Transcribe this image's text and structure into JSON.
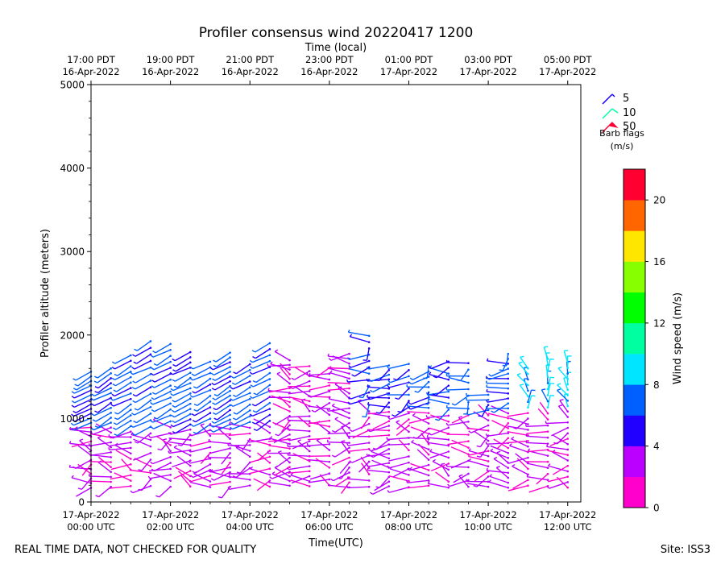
{
  "chart_data": {
    "type": "wind-barb-profile",
    "title": "Profiler consensus wind 20220417 1200",
    "top_axis_label": "Time (local)",
    "xlabel": "Time(UTC)",
    "ylabel": "Profiler altitude (meters)",
    "xlim_hours_utc": [
      0,
      12.33
    ],
    "ylim": [
      0,
      5000
    ],
    "y_ticks": [
      "0",
      "1000",
      "2000",
      "3000",
      "4000",
      "5000"
    ],
    "bottom_ticks": [
      {
        "hour": 0,
        "line1": "17-Apr-2022",
        "line2": "00:00 UTC"
      },
      {
        "hour": 2,
        "line1": "17-Apr-2022",
        "line2": "02:00 UTC"
      },
      {
        "hour": 4,
        "line1": "17-Apr-2022",
        "line2": "04:00 UTC"
      },
      {
        "hour": 6,
        "line1": "17-Apr-2022",
        "line2": "06:00 UTC"
      },
      {
        "hour": 8,
        "line1": "17-Apr-2022",
        "line2": "08:00 UTC"
      },
      {
        "hour": 10,
        "line1": "17-Apr-2022",
        "line2": "10:00 UTC"
      },
      {
        "hour": 12,
        "line1": "17-Apr-2022",
        "line2": "12:00 UTC"
      }
    ],
    "top_ticks": [
      {
        "hour": 0,
        "line1": "17:00 PDT",
        "line2": "16-Apr-2022"
      },
      {
        "hour": 2,
        "line1": "19:00 PDT",
        "line2": "16-Apr-2022"
      },
      {
        "hour": 4,
        "line1": "21:00 PDT",
        "line2": "16-Apr-2022"
      },
      {
        "hour": 6,
        "line1": "23:00 PDT",
        "line2": "16-Apr-2022"
      },
      {
        "hour": 8,
        "line1": "01:00 PDT",
        "line2": "17-Apr-2022"
      },
      {
        "hour": 10,
        "line1": "03:00 PDT",
        "line2": "17-Apr-2022"
      },
      {
        "hour": 12,
        "line1": "05:00 PDT",
        "line2": "17-Apr-2022"
      }
    ],
    "barb_legend": {
      "items": [
        {
          "label": "5",
          "color": "#1a00ff"
        },
        {
          "label": "10",
          "color": "#00ffa0"
        },
        {
          "label": "50",
          "color": "#ff0033"
        }
      ],
      "title_line1": "Barb flags",
      "title_line2": "(m/s)"
    },
    "colorbar": {
      "label": "Wind speed (m/s)",
      "range": [
        0,
        22
      ],
      "ticks": [
        "0",
        "4",
        "8",
        "12",
        "16",
        "20"
      ],
      "colors": [
        "#ff00cc",
        "#bb00ff",
        "#2200ff",
        "#0060ff",
        "#00e5ff",
        "#00ffa0",
        "#00ff00",
        "#88ff00",
        "#ffe600",
        "#ff6600",
        "#ff0030"
      ]
    },
    "series_summary": {
      "profile_interval_min": 30,
      "profile_hours": [
        0,
        0.5,
        1,
        1.5,
        2,
        2.5,
        3,
        3.5,
        4,
        4.5,
        5,
        5.5,
        6,
        6.5,
        7,
        7.5,
        8,
        8.5,
        9,
        9.5,
        10,
        10.5,
        11,
        11.5,
        12
      ],
      "profile_top_altitude_m": [
        1580,
        1650,
        1800,
        1980,
        1960,
        1840,
        1700,
        1830,
        1700,
        1950,
        1700,
        1630,
        1650,
        1780,
        2020,
        1640,
        1700,
        1680,
        1700,
        1700,
        1300,
        1780,
        1660,
        1720,
        1680
      ],
      "speed_range_ms": [
        1,
        10
      ]
    }
  },
  "footer": {
    "left_note": "REAL TIME DATA, NOT CHECKED FOR QUALITY",
    "site": "Site: ISS3"
  }
}
